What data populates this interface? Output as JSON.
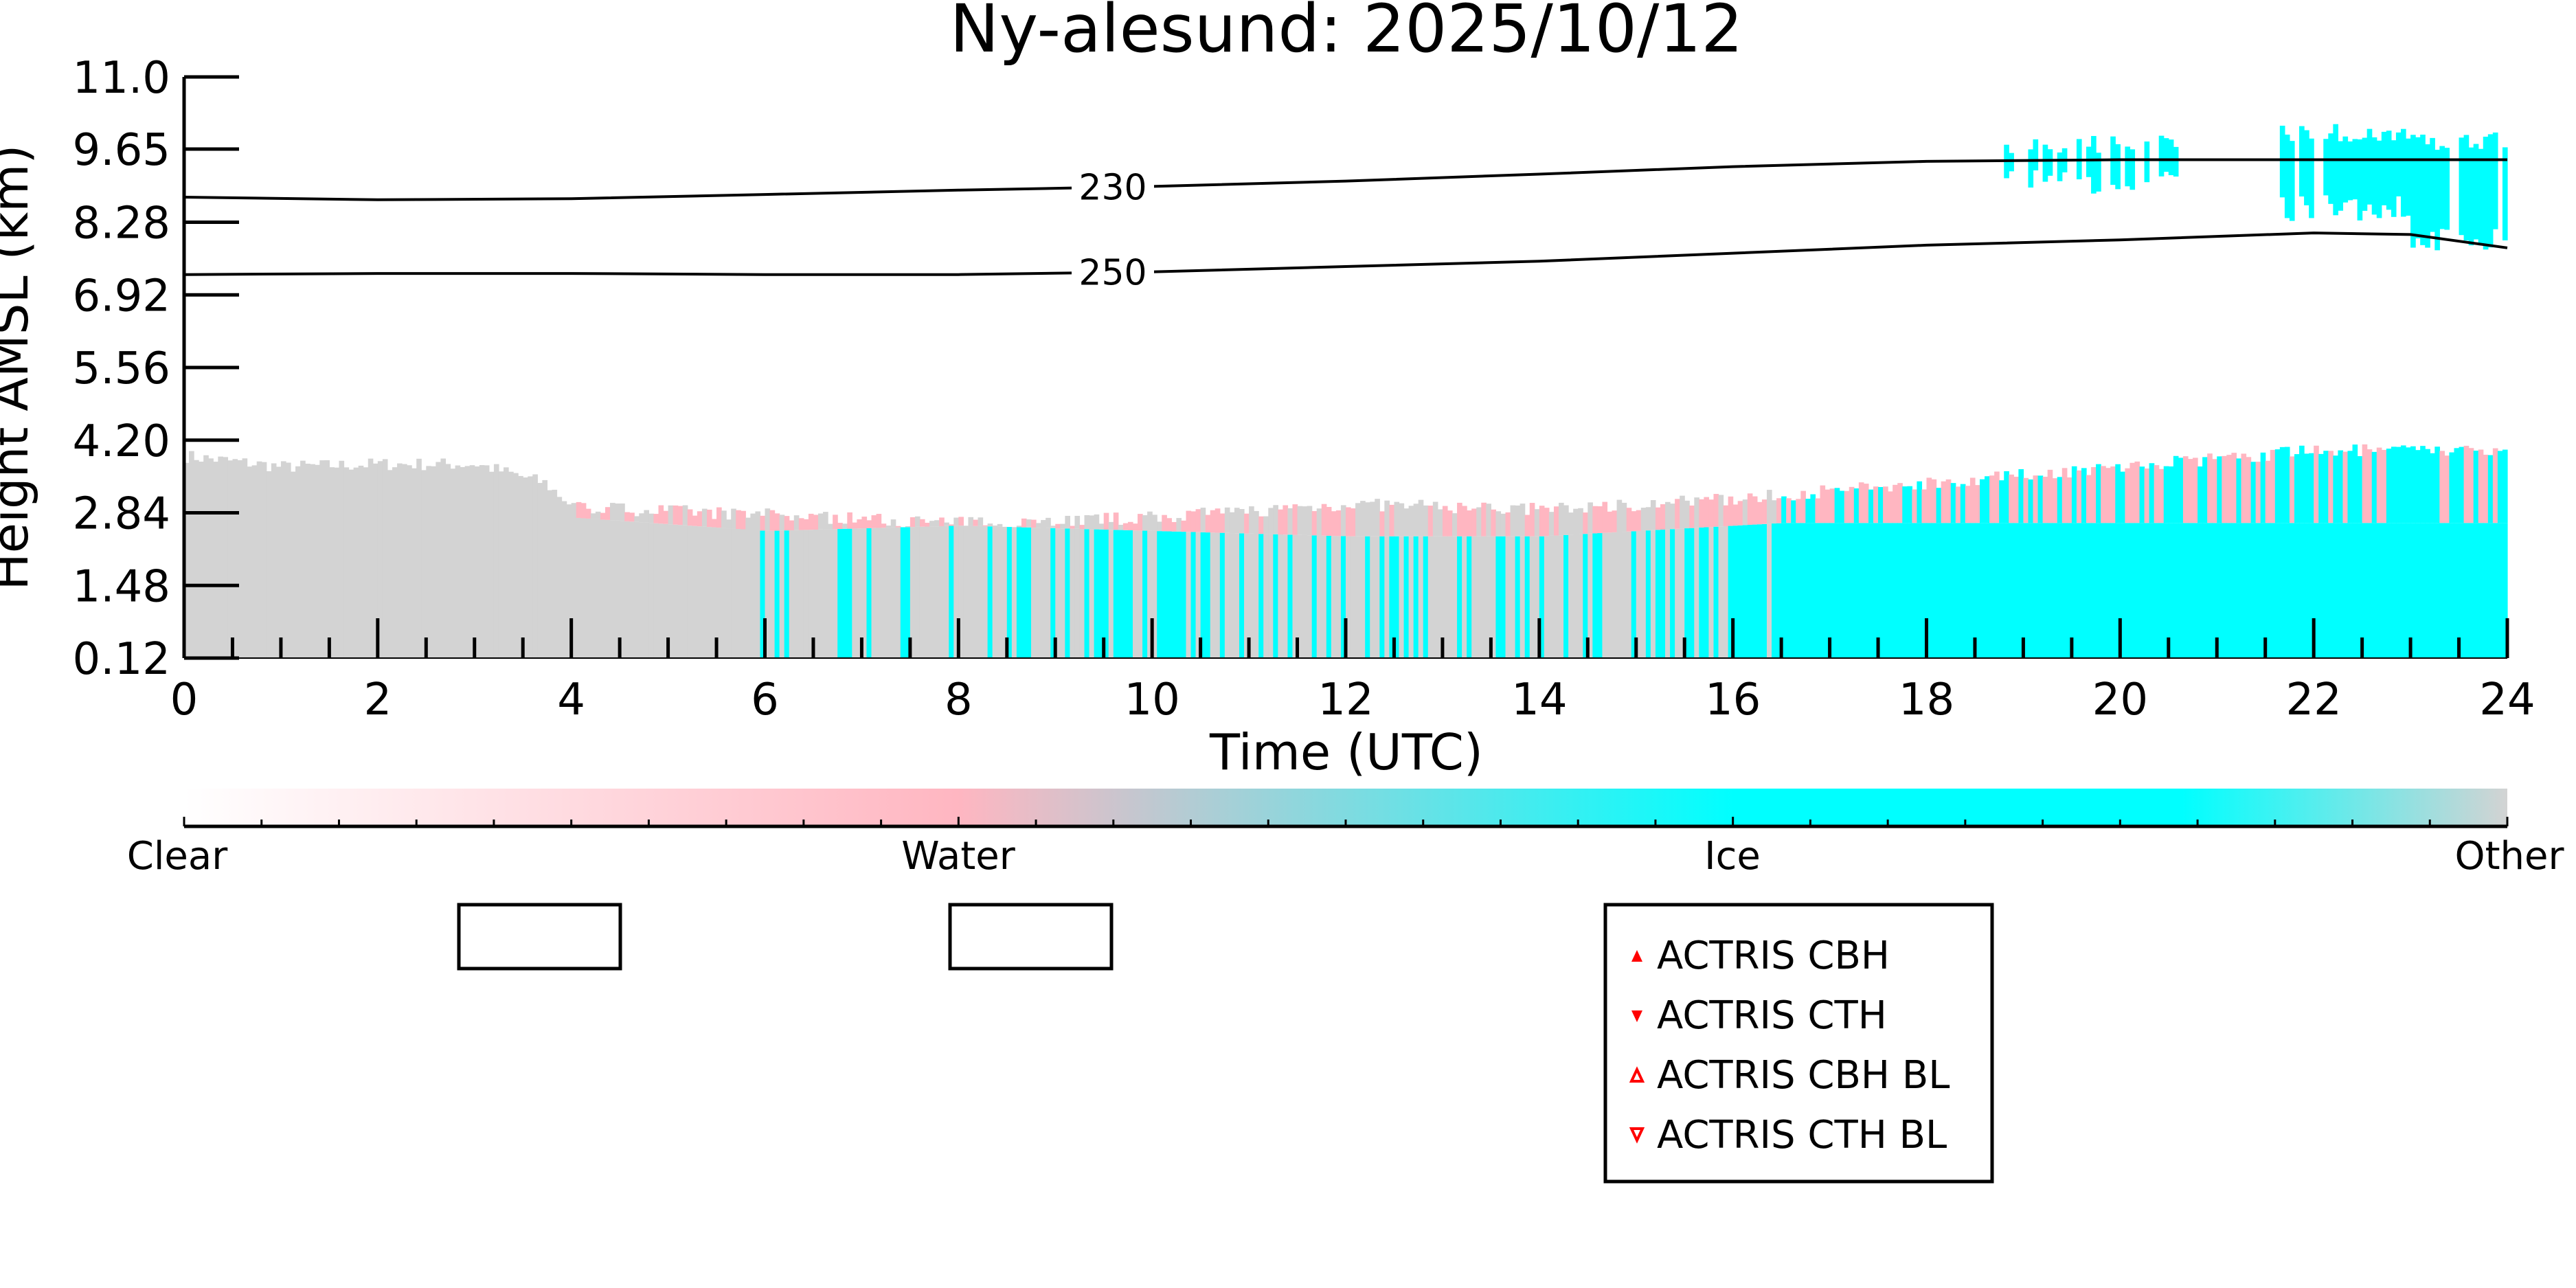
{
  "chart_data": {
    "type": "heatmap",
    "title": "Ny-alesund: 2025/10/12",
    "xlabel": "Time (UTC)",
    "ylabel": "Height AMSL (km)",
    "xlim": [
      0,
      24
    ],
    "ylim": [
      0.12,
      11.0
    ],
    "x_ticks": [
      "0",
      "2",
      "4",
      "6",
      "8",
      "10",
      "12",
      "14",
      "16",
      "18",
      "20",
      "22",
      "24"
    ],
    "y_ticks": [
      "0.12",
      "1.48",
      "2.84",
      "4.20",
      "5.56",
      "6.92",
      "8.28",
      "9.65",
      "11.0"
    ],
    "grid": false,
    "categories": [
      "Clear",
      "Water",
      "Ice",
      "Other"
    ],
    "colors": {
      "Clear": "#ffffff",
      "Water": "#ffb6c1",
      "Ice": "#00ffff",
      "Other": "#d3d3d3"
    },
    "contours": [
      {
        "label": "230",
        "points": [
          [
            0,
            8.75
          ],
          [
            2,
            8.7
          ],
          [
            4,
            8.72
          ],
          [
            6,
            8.8
          ],
          [
            8,
            8.88
          ],
          [
            10,
            8.95
          ],
          [
            12,
            9.05
          ],
          [
            14,
            9.18
          ],
          [
            16,
            9.32
          ],
          [
            18,
            9.42
          ],
          [
            20,
            9.45
          ],
          [
            22,
            9.45
          ],
          [
            24,
            9.45
          ]
        ]
      },
      {
        "label": "250",
        "points": [
          [
            0,
            7.3
          ],
          [
            2,
            7.32
          ],
          [
            4,
            7.32
          ],
          [
            6,
            7.3
          ],
          [
            8,
            7.3
          ],
          [
            10,
            7.35
          ],
          [
            12,
            7.45
          ],
          [
            14,
            7.55
          ],
          [
            16,
            7.7
          ],
          [
            18,
            7.85
          ],
          [
            20,
            7.95
          ],
          [
            22,
            8.08
          ],
          [
            23,
            8.05
          ],
          [
            24,
            7.8
          ]
        ]
      }
    ],
    "low_cloud_top_km": [
      [
        0,
        3.9
      ],
      [
        1,
        3.7
      ],
      [
        2,
        3.75
      ],
      [
        3,
        3.75
      ],
      [
        3.7,
        3.4
      ],
      [
        4,
        2.95
      ],
      [
        6,
        2.8
      ],
      [
        8,
        2.65
      ],
      [
        10,
        2.75
      ],
      [
        12,
        3.0
      ],
      [
        14,
        2.9
      ],
      [
        16,
        3.1
      ],
      [
        18,
        3.4
      ],
      [
        20,
        3.7
      ],
      [
        22,
        4.0
      ],
      [
        24,
        4.0
      ]
    ],
    "ice_top_km": [
      [
        4,
        2.75
      ],
      [
        6,
        2.5
      ],
      [
        8,
        2.6
      ],
      [
        10,
        2.5
      ],
      [
        12,
        2.4
      ],
      [
        14,
        2.4
      ],
      [
        16,
        2.6
      ],
      [
        16.5,
        2.65
      ],
      [
        24,
        2.65
      ]
    ],
    "legend": [
      "ACTRIS CBH",
      "ACTRIS CTH",
      "ACTRIS CBH BL",
      "ACTRIS CTH BL"
    ],
    "marker_color": "#ff0000"
  }
}
